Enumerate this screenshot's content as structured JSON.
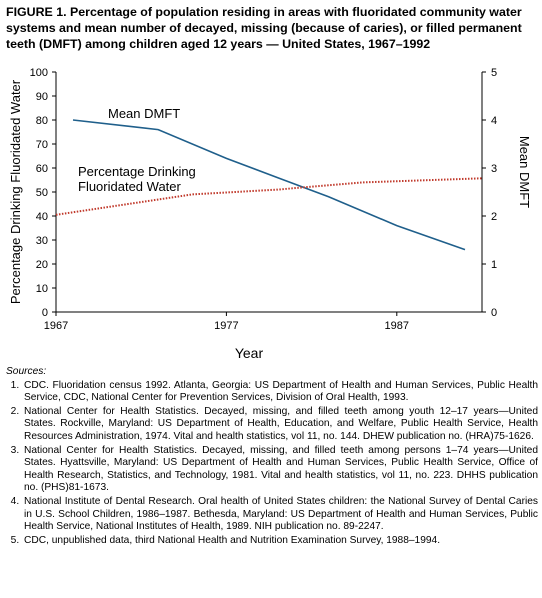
{
  "figure": {
    "title": "FIGURE 1. Percentage of population residing in areas with fluoridated community water systems and mean number of decayed, missing (because of caries), or filled permanent teeth (DMFT) among children aged 12 years — United States, 1967–1992"
  },
  "chart_data": {
    "type": "line",
    "xlabel": "Year",
    "ylabel_left": "Percentage Drinking Fluoridated Water",
    "ylabel_right": "Mean DMFT",
    "xlim": [
      1967,
      1992
    ],
    "x_ticks": [
      1967,
      1977,
      1987
    ],
    "ylim_left": [
      0,
      100
    ],
    "ylim_right": [
      0,
      5
    ],
    "y_ticks_left": [
      0,
      10,
      20,
      30,
      40,
      50,
      60,
      70,
      80,
      90,
      100
    ],
    "y_ticks_right": [
      0,
      1,
      2,
      3,
      4,
      5
    ],
    "grid": false,
    "series": [
      {
        "name": "Mean DMFT",
        "axis": "right",
        "color": "#1f5f8b",
        "style": "solid",
        "x": [
          1968,
          1973,
          1977,
          1980,
          1983,
          1987,
          1991
        ],
        "y": [
          4.0,
          3.8,
          3.2,
          2.8,
          2.4,
          1.8,
          1.3
        ]
      },
      {
        "name": "Percentage Drinking Fluoridated Water",
        "axis": "left",
        "color": "#c0392b",
        "style": "dotted",
        "x": [
          1967,
          1975,
          1980,
          1985,
          1992
        ],
        "y": [
          40.5,
          49,
          51,
          54,
          55.7
        ]
      }
    ],
    "annotations": [
      {
        "series": 0,
        "lines": [
          "Mean DMFT"
        ]
      },
      {
        "series": 1,
        "lines": [
          "Percentage Drinking",
          "Fluoridated Water"
        ]
      }
    ]
  },
  "sources": {
    "header": "Sources:",
    "items": [
      "CDC. Fluoridation census 1992. Atlanta, Georgia: US Department of Health and Human Services, Public Health Service, CDC, National Center for Prevention Services, Division of Oral Health, 1993.",
      "National Center for Health Statistics. Decayed, missing, and filled teeth among youth 12–17 years—United States. Rockville, Maryland: US Department of Health, Education, and Welfare, Public Health Service, Health Resources Administration, 1974. Vital and health statistics, vol 11, no. 144. DHEW publication no. (HRA)75-1626.",
      "National Center for Health Statistics. Decayed, missing, and filled teeth among persons 1–74 years—United States. Hyattsville, Maryland: US Department of Health and Human Services, Public Health Service, Office of Health Research, Statistics, and Technology, 1981. Vital and health statistics, vol 11, no. 223. DHHS publication no. (PHS)81-1673.",
      "National Institute of Dental Research. Oral health of United States children: the National Survey of Dental Caries in U.S. School Children, 1986–1987. Bethesda, Maryland: US Department of Health and Human Services, Public Health Service, National Institutes of Health, 1989. NIH publication no. 89-2247.",
      "CDC, unpublished data, third National Health and Nutrition Examination Survey, 1988–1994."
    ]
  }
}
